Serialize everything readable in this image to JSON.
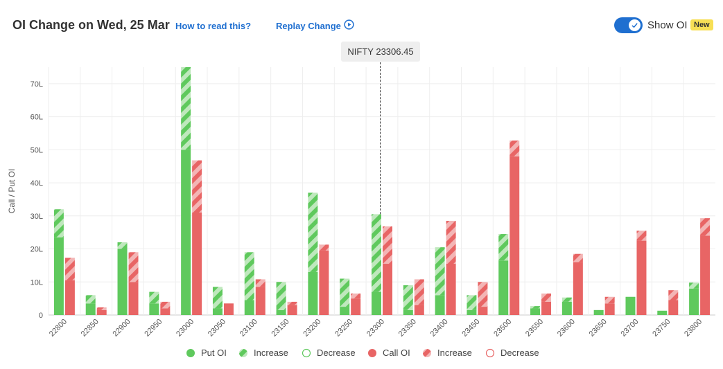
{
  "header": {
    "title": "OI Change on Wed, 25 Mar",
    "how_to_read": "How to read this?",
    "replay": "Replay Change",
    "show_oi_label": "Show OI",
    "badge": "New",
    "toggle_on": true
  },
  "spot": {
    "label": "NIFTY 23306.45",
    "value": 23306.45
  },
  "colors": {
    "put": "#5fc95d",
    "put_light": "#bfe8bd",
    "call": "#e86565",
    "call_light": "#f3b5b5"
  },
  "legend": [
    {
      "label": "Put OI",
      "kind": "put-solid"
    },
    {
      "label": "Increase",
      "kind": "put-stripe"
    },
    {
      "label": "Decrease",
      "kind": "put-outline"
    },
    {
      "label": "Call OI",
      "kind": "call-solid"
    },
    {
      "label": "Increase",
      "kind": "call-stripe"
    },
    {
      "label": "Decrease",
      "kind": "call-outline"
    }
  ],
  "chart_data": {
    "type": "bar",
    "ylabel": "Call / Put OI",
    "unit": "L",
    "ylim": [
      0,
      75
    ],
    "yticks": [
      0,
      10,
      20,
      30,
      40,
      50,
      60,
      70
    ],
    "ytick_labels": [
      "0",
      "10L",
      "20L",
      "30L",
      "40L",
      "50L",
      "60L",
      "70L"
    ],
    "grid": true,
    "legend_position": "bottom",
    "categories": [
      "22800",
      "22850",
      "22900",
      "22950",
      "23000",
      "23050",
      "23100",
      "23150",
      "23200",
      "23250",
      "23300",
      "23350",
      "23400",
      "23450",
      "23500",
      "23550",
      "23600",
      "23650",
      "23700",
      "23750",
      "23800"
    ],
    "series": [
      {
        "name": "Put OI",
        "base": [
          23.5,
          3.5,
          20,
          3.5,
          50,
          2,
          4.5,
          1.5,
          13,
          2.5,
          7,
          1.5,
          6,
          1.5,
          16.5,
          2,
          4,
          1.5,
          5.5,
          1.3,
          8
        ],
        "total": [
          32,
          6,
          22,
          7,
          75,
          8.5,
          19,
          10,
          37,
          11,
          30.5,
          9,
          20.5,
          6,
          24.5,
          2.7,
          5.3,
          1.5,
          5.5,
          1.3,
          9.8
        ]
      },
      {
        "name": "Call OI",
        "base": [
          10.5,
          1.5,
          10,
          2,
          31,
          3.5,
          8.5,
          3,
          19.5,
          5,
          15.5,
          3,
          15.5,
          2.5,
          48,
          4,
          16,
          3.5,
          22.5,
          4.5,
          24
        ],
        "total": [
          17.3,
          2.3,
          19,
          4,
          46.8,
          3.5,
          10.8,
          4,
          21.3,
          6.5,
          26.8,
          10.8,
          28.5,
          10,
          52.8,
          6.5,
          18.5,
          5.5,
          25.5,
          7.5,
          29.3
        ]
      }
    ]
  }
}
